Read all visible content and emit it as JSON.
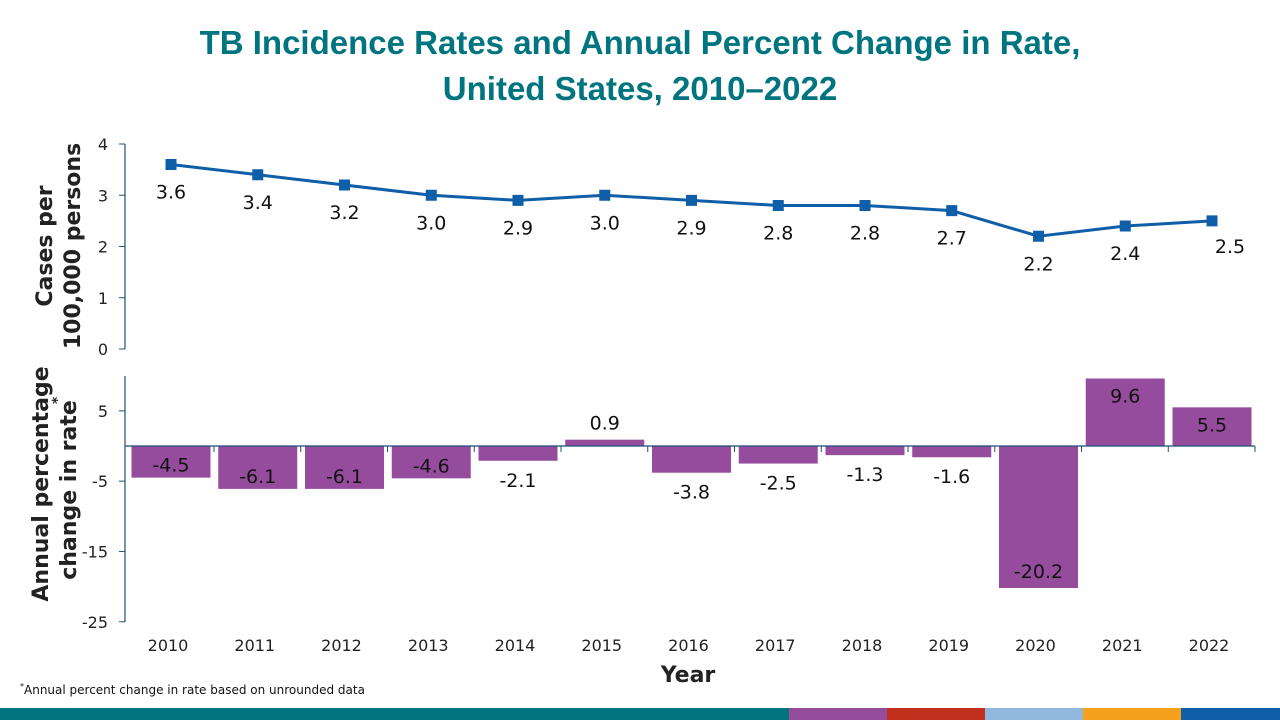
{
  "title_line1": "TB Incidence Rates and Annual Percent Change in Rate,",
  "title_line2": "United States, 2010–2022",
  "footnote_marker": "*",
  "footnote": "Annual percent change in rate based on unrounded data",
  "colors": {
    "title": "#00747f",
    "line": "#0f5ea8",
    "bar": "#964c9c",
    "axis": "#1f4e79"
  },
  "bottom_band_colors": [
    "#00747f",
    "#964c9c",
    "#c0301d",
    "#8fb8dc",
    "#f5a11c",
    "#0f5ea8"
  ],
  "chart_data": [
    {
      "type": "line",
      "ylabel_line1": "Cases per",
      "ylabel_line2": "100,000 persons",
      "ylim": [
        0,
        4
      ],
      "yticks": [
        "0",
        "1",
        "2",
        "3",
        "4"
      ],
      "categories": [
        "2010",
        "2011",
        "2012",
        "2013",
        "2014",
        "2015",
        "2016",
        "2017",
        "2018",
        "2019",
        "2020",
        "2021",
        "2022"
      ],
      "values": [
        3.6,
        3.4,
        3.2,
        3.0,
        2.9,
        3.0,
        2.9,
        2.8,
        2.8,
        2.7,
        2.2,
        2.4,
        2.5
      ],
      "data_labels": [
        "3.6",
        "3.4",
        "3.2",
        "3.0",
        "2.9",
        "3.0",
        "2.9",
        "2.8",
        "2.8",
        "2.7",
        "2.2",
        "2.4",
        "2.5"
      ],
      "marker": "square"
    },
    {
      "type": "bar",
      "ylabel_line1": "Annual percentage",
      "ylabel_line2": "change in rate",
      "ylabel_marker": "*",
      "xlabel": "Year",
      "ylim": [
        -25,
        10
      ],
      "yticks": [
        "-25",
        "-15",
        "-5",
        "5"
      ],
      "categories": [
        "2010",
        "2011",
        "2012",
        "2013",
        "2014",
        "2015",
        "2016",
        "2017",
        "2018",
        "2019",
        "2020",
        "2021",
        "2022"
      ],
      "values": [
        -4.5,
        -6.1,
        -6.1,
        -4.6,
        -2.1,
        0.9,
        -3.8,
        -2.5,
        -1.3,
        -1.6,
        -20.2,
        9.6,
        5.5
      ],
      "data_labels": [
        "-4.5",
        "-6.1",
        "-6.1",
        "-4.6",
        "-2.1",
        "0.9",
        "-3.8",
        "-2.5",
        "-1.3",
        "-1.6",
        "-20.2",
        "9.6",
        "5.5"
      ]
    }
  ]
}
